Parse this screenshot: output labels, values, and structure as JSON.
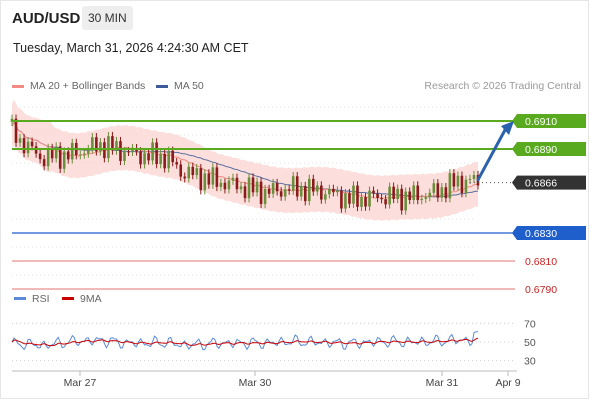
{
  "header": {
    "symbol": "AUD/USD",
    "timeframe": "30 MIN",
    "timestamp": "Tuesday, March 31, 2026 4:24:30 AM CET"
  },
  "legend": {
    "items": [
      {
        "label": "MA 20 + Bollinger Bands",
        "color": "#f28b82"
      },
      {
        "label": "MA 50",
        "color": "#3d5a99"
      }
    ],
    "credit": "Research © 2026 Trading Central"
  },
  "colors": {
    "resistance": "#5aaa1f",
    "support": "#1f5fcc",
    "target": "#e57373",
    "up_candle": "#6b8e3a",
    "down_candle": "#8b1a1a",
    "bollinger_fill": "#fbd4d0",
    "ma20": "#f28b82",
    "ma50": "#5a6f9e",
    "rsi": "#5b8bd6",
    "rsi_ma": "#cc0000",
    "price_tag": "#333333",
    "arrow": "#2a62ad"
  },
  "chart_data": {
    "type": "candlestick",
    "y_axis": {
      "range": [
        0.678,
        0.693
      ]
    },
    "x_axis": {
      "ticks": [
        "Mar 27",
        "Mar 30",
        "Mar 31",
        "Apr 9"
      ]
    },
    "levels": [
      {
        "value": 0.691,
        "label": "0.6910",
        "kind": "resistance"
      },
      {
        "value": 0.689,
        "label": "0.6890",
        "kind": "resistance"
      },
      {
        "value": 0.6866,
        "label": "0.6866",
        "kind": "current"
      },
      {
        "value": 0.683,
        "label": "0.6830",
        "kind": "support"
      },
      {
        "value": 0.681,
        "label": "0.6810",
        "kind": "target"
      },
      {
        "value": 0.679,
        "label": "0.6790",
        "kind": "target"
      }
    ],
    "forecast": {
      "from": 0.6868,
      "to": 0.691
    },
    "rsi": {
      "legend": [
        "RSI",
        "9MA"
      ],
      "levels": [
        70,
        50,
        30
      ],
      "range": [
        20,
        80
      ]
    }
  }
}
